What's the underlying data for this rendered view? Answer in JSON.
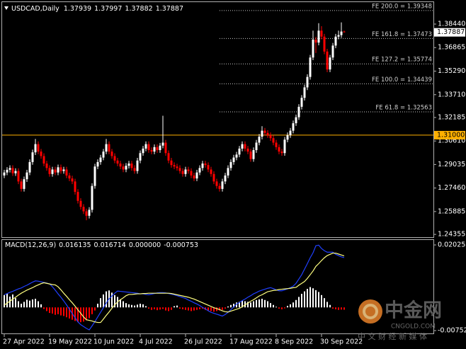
{
  "chart_data": [
    {
      "type": "candlestick",
      "title": "USDCAD,Daily",
      "categories": [
        "27 Apr 2022",
        null,
        null,
        null,
        null,
        null,
        null,
        null,
        null,
        null,
        null,
        null,
        null,
        null,
        null,
        null,
        "19 May 2022",
        null,
        null,
        null,
        null,
        null,
        null,
        null,
        null,
        null,
        null,
        null,
        null,
        null,
        null,
        null,
        "10 Jun 2022",
        null,
        null,
        null,
        null,
        null,
        null,
        null,
        null,
        null,
        null,
        null,
        null,
        null,
        null,
        null,
        "4 Jul 2022",
        null,
        null,
        null,
        null,
        null,
        null,
        null,
        null,
        null,
        null,
        null,
        null,
        null,
        null,
        null,
        "26 Jul 2022",
        null,
        null,
        null,
        null,
        null,
        null,
        null,
        null,
        null,
        null,
        null,
        null,
        null,
        null,
        null,
        "17 Aug 2022",
        null,
        null,
        null,
        null,
        null,
        null,
        null,
        null,
        null,
        null,
        null,
        null,
        null,
        null,
        null,
        "8 Sep 2022",
        null,
        null,
        null,
        null,
        null,
        null,
        null,
        null,
        null,
        null,
        null,
        null,
        null,
        null,
        null,
        "30 Sep 2022",
        null,
        null,
        null,
        null,
        null,
        null,
        null,
        null
      ],
      "open": [
        1.283,
        1.285,
        1.2868,
        1.288,
        1.2845,
        1.286,
        1.279,
        1.274,
        1.2805,
        1.285,
        1.292,
        1.2985,
        1.304,
        1.299,
        1.296,
        1.291,
        1.288,
        1.284,
        1.287,
        1.285,
        1.2885,
        1.286,
        1.287,
        1.283,
        1.281,
        1.279,
        1.272,
        1.266,
        1.262,
        1.259,
        1.256,
        1.26,
        1.276,
        1.289,
        1.292,
        1.295,
        1.299,
        1.304,
        1.299,
        1.296,
        1.293,
        1.291,
        1.289,
        1.287,
        1.2895,
        1.291,
        1.288,
        1.286,
        1.293,
        1.298,
        1.301,
        1.304,
        1.3,
        1.299,
        1.302,
        1.3,
        1.303,
        1.305,
        1.298,
        1.293,
        1.29,
        1.289,
        1.288,
        1.286,
        1.284,
        1.287,
        1.286,
        1.283,
        1.281,
        1.285,
        1.288,
        1.291,
        1.29,
        1.287,
        1.284,
        1.279,
        1.276,
        1.274,
        1.279,
        1.283,
        1.288,
        1.292,
        1.295,
        1.297,
        1.301,
        1.304,
        1.301,
        1.299,
        1.294,
        1.3,
        1.305,
        1.309,
        1.313,
        1.3115,
        1.31,
        1.308,
        1.305,
        1.302,
        1.299,
        1.298,
        1.307,
        1.31,
        1.313,
        1.318,
        1.322,
        1.329,
        1.335,
        1.342,
        1.349,
        1.362,
        1.374,
        1.372,
        1.38,
        1.376,
        1.366,
        1.354,
        1.362,
        1.37,
        1.376,
        1.377,
        1.37939
      ],
      "high": [
        1.2868,
        1.2886,
        1.2898,
        1.2898,
        1.2878,
        1.2878,
        1.2808,
        1.2823,
        1.2868,
        1.2938,
        1.3003,
        1.3075,
        1.3058,
        1.3008,
        1.2978,
        1.2928,
        1.2898,
        1.2888,
        1.2888,
        1.2903,
        1.2903,
        1.2888,
        1.2888,
        1.2848,
        1.2828,
        1.2808,
        1.2738,
        1.2678,
        1.2638,
        1.2608,
        1.2618,
        1.2778,
        1.2908,
        1.2938,
        1.2968,
        1.3008,
        1.3075,
        1.3058,
        1.3008,
        1.2978,
        1.2948,
        1.2928,
        1.2908,
        1.2913,
        1.2928,
        1.2928,
        1.2898,
        1.2948,
        1.2998,
        1.3028,
        1.3058,
        1.3058,
        1.3018,
        1.3038,
        1.3038,
        1.3048,
        1.323,
        1.3068,
        1.2998,
        1.2948,
        1.2918,
        1.2908,
        1.2898,
        1.2878,
        1.2888,
        1.2888,
        1.2878,
        1.2848,
        1.2868,
        1.2898,
        1.2928,
        1.2928,
        1.2918,
        1.2888,
        1.2858,
        1.2808,
        1.2778,
        1.2808,
        1.2848,
        1.2898,
        1.2938,
        1.2968,
        1.2988,
        1.3028,
        1.3058,
        1.3058,
        1.3028,
        1.3008,
        1.3018,
        1.3068,
        1.3108,
        1.316,
        1.3148,
        1.3133,
        1.3118,
        1.3098,
        1.3068,
        1.3038,
        1.3008,
        1.3088,
        1.3118,
        1.3148,
        1.3198,
        1.3238,
        1.3308,
        1.3368,
        1.3438,
        1.3508,
        1.3638,
        1.38,
        1.3758,
        1.385,
        1.383,
        1.3778,
        1.3678,
        1.3638,
        1.3718,
        1.3778,
        1.38,
        1.3855,
        1.37997
      ],
      "low": [
        1.2812,
        1.2832,
        1.285,
        1.2827,
        1.2827,
        1.2772,
        1.2722,
        1.2722,
        1.2787,
        1.2832,
        1.2902,
        1.2967,
        1.2972,
        1.2942,
        1.2892,
        1.2862,
        1.2822,
        1.2822,
        1.2832,
        1.2832,
        1.2842,
        1.2842,
        1.2812,
        1.2792,
        1.2772,
        1.2702,
        1.2642,
        1.2602,
        1.2572,
        1.253,
        1.2542,
        1.2582,
        1.2742,
        1.2872,
        1.2902,
        1.2932,
        1.2972,
        1.2972,
        1.2942,
        1.2912,
        1.2892,
        1.2872,
        1.2852,
        1.2852,
        1.2877,
        1.2862,
        1.2842,
        1.2842,
        1.2912,
        1.2962,
        1.2992,
        1.2982,
        1.2972,
        1.2972,
        1.2982,
        1.2982,
        1.3012,
        1.2962,
        1.2912,
        1.2882,
        1.2872,
        1.2862,
        1.2842,
        1.2822,
        1.2822,
        1.2842,
        1.2812,
        1.2792,
        1.2792,
        1.2832,
        1.2862,
        1.2882,
        1.2852,
        1.2822,
        1.2772,
        1.2742,
        1.2722,
        1.2722,
        1.2772,
        1.2812,
        1.2862,
        1.2902,
        1.2932,
        1.2952,
        1.2992,
        1.2992,
        1.2972,
        1.2922,
        1.2922,
        1.2982,
        1.3032,
        1.3072,
        1.3097,
        1.3082,
        1.3062,
        1.3032,
        1.3002,
        1.2972,
        1.2962,
        1.2962,
        1.3052,
        1.3082,
        1.3112,
        1.3162,
        1.3202,
        1.3272,
        1.3332,
        1.3402,
        1.3472,
        1.3602,
        1.365,
        1.3702,
        1.3742,
        1.3642,
        1.3522,
        1.3522,
        1.3602,
        1.3682,
        1.3742,
        1.3752,
        1.37882
      ],
      "close": [
        1.285,
        1.2868,
        1.288,
        1.2845,
        1.286,
        1.279,
        1.274,
        1.2805,
        1.285,
        1.292,
        1.2985,
        1.304,
        1.299,
        1.296,
        1.291,
        1.288,
        1.284,
        1.287,
        1.285,
        1.2885,
        1.286,
        1.287,
        1.283,
        1.281,
        1.279,
        1.272,
        1.266,
        1.262,
        1.259,
        1.256,
        1.26,
        1.276,
        1.289,
        1.292,
        1.295,
        1.299,
        1.304,
        1.299,
        1.296,
        1.293,
        1.291,
        1.289,
        1.287,
        1.2895,
        1.291,
        1.288,
        1.286,
        1.293,
        1.298,
        1.301,
        1.304,
        1.3,
        1.299,
        1.302,
        1.3,
        1.303,
        1.305,
        1.298,
        1.293,
        1.29,
        1.289,
        1.288,
        1.286,
        1.284,
        1.287,
        1.286,
        1.283,
        1.281,
        1.285,
        1.288,
        1.291,
        1.29,
        1.287,
        1.284,
        1.279,
        1.276,
        1.274,
        1.279,
        1.283,
        1.288,
        1.292,
        1.295,
        1.297,
        1.301,
        1.304,
        1.301,
        1.299,
        1.294,
        1.3,
        1.305,
        1.309,
        1.313,
        1.3115,
        1.31,
        1.308,
        1.305,
        1.302,
        1.299,
        1.298,
        1.307,
        1.31,
        1.313,
        1.318,
        1.322,
        1.329,
        1.335,
        1.342,
        1.349,
        1.362,
        1.374,
        1.372,
        1.38,
        1.376,
        1.366,
        1.354,
        1.362,
        1.37,
        1.376,
        1.377,
        1.37939,
        1.37887
      ],
      "up_color": "#ffffff",
      "down_color": "#ff0000",
      "ylim": [
        1.2417,
        1.3991
      ],
      "yticks": [
        {
          "value": 1.3844,
          "label": "1.38440"
        },
        1.36865,
        {
          "value": 1.3529,
          "label": "1.35290"
        },
        {
          "value": 1.3371,
          "label": "1.33710"
        },
        1.32185,
        {
          "value": 1.3061,
          "label": "1.30610"
        },
        1.29035,
        {
          "value": 1.2746,
          "label": "1.27460"
        },
        1.25885,
        1.24355
      ],
      "hline": {
        "value": 1.31,
        "label": "1.31000",
        "color": "#ffb000"
      },
      "levels": [
        {
          "value": 1.39348,
          "label": "FE 200.0 = 1.39348"
        },
        {
          "value": 1.37473,
          "label": "FE 161.8 = 1.37473"
        },
        {
          "value": 1.35774,
          "label": "FE 127.2 = 1.35774"
        },
        {
          "value": 1.34439,
          "label": "FE 100.0 = 1.34439"
        },
        {
          "value": 1.32563,
          "label": "FE 61.8 = 1.32563"
        }
      ],
      "grid": false
    },
    {
      "type": "macd",
      "title": "MACD(12,26,9)",
      "header_values": [
        0.016135,
        0.016714,
        "0.000000",
        -0.000753
      ],
      "histogram": {
        "up_color": "#ffffff",
        "down_color": "#ff0000",
        "values": [
          0.004,
          0.0045,
          0.0035,
          0.0042,
          0.003,
          0.002,
          0.0012,
          0.0018,
          0.0025,
          0.0022,
          0.0026,
          0.0028,
          0.002,
          0.001,
          -0.0005,
          -0.0012,
          -0.0018,
          -0.002,
          -0.0024,
          -0.0022,
          -0.0026,
          -0.0028,
          -0.0032,
          -0.0036,
          -0.004,
          -0.0044,
          -0.0047,
          -0.0048,
          -0.0046,
          -0.0042,
          -0.0035,
          -0.0022,
          -0.001,
          0.0012,
          0.003,
          0.0042,
          0.0052,
          0.0055,
          0.0048,
          0.004,
          0.0034,
          0.0026,
          0.002,
          0.0014,
          0.001,
          0.0008,
          0.0006,
          0.0009,
          0.0012,
          0.001,
          0.0004,
          -0.0004,
          -0.0008,
          -0.0006,
          -0.0009,
          -0.0007,
          -0.0005,
          -0.001,
          -0.0012,
          -0.0008,
          0.0004,
          0.0006,
          -0.0004,
          -0.0006,
          -0.0008,
          -0.001,
          -0.0012,
          -0.001,
          -0.0008,
          -0.0006,
          -0.0004,
          -0.0008,
          -0.001,
          -0.0012,
          -0.0014,
          -0.0012,
          -0.001,
          -0.0008,
          -0.0004,
          0.0003,
          0.0008,
          0.0012,
          0.0016,
          0.0018,
          0.0022,
          0.002,
          0.0018,
          0.0016,
          0.002,
          0.0024,
          0.0026,
          0.0028,
          0.0024,
          0.002,
          0.0014,
          0.0008,
          0.0002,
          -0.0004,
          -0.0006,
          -0.0003,
          0.0005,
          0.001,
          0.0016,
          0.0024,
          0.0034,
          0.0044,
          0.0052,
          0.006,
          0.0066,
          0.0062,
          0.0056,
          0.005,
          0.004,
          0.003,
          0.0018,
          0.0008,
          -0.0004,
          -0.0006,
          -0.0008,
          -0.0007,
          -0.000753
        ]
      },
      "series": [
        {
          "color": "#2040ff",
          "values": [
            0.0041,
            0.0045,
            0.0049,
            0.0052,
            0.0056,
            0.006,
            0.0063,
            0.0068,
            0.0072,
            0.0077,
            0.0082,
            0.0086,
            0.0085,
            0.0083,
            0.0081,
            0.0079,
            0.0076,
            0.0067,
            0.0056,
            0.0044,
            0.0033,
            0.0021,
            0.0008,
            -0.0006,
            -0.002,
            -0.0033,
            -0.0047,
            -0.0056,
            -0.0062,
            -0.0068,
            -0.0073,
            -0.006,
            -0.0046,
            -0.0031,
            -0.0016,
            -0.0001,
            0.0014,
            0.0028,
            0.0037,
            0.0046,
            0.0053,
            0.0052,
            0.0051,
            0.005,
            0.0049,
            0.0048,
            0.0047,
            0.0046,
            0.0044,
            0.0044,
            0.0042,
            0.0041,
            0.0043,
            0.0045,
            0.0047,
            0.0048,
            0.0048,
            0.0047,
            0.0045,
            0.0043,
            0.0041,
            0.0038,
            0.0035,
            0.0032,
            0.0029,
            0.0024,
            0.002,
            0.0015,
            0.0011,
            0.0006,
            0.0,
            -0.0005,
            -0.0011,
            -0.0016,
            -0.0019,
            -0.0022,
            -0.0025,
            -0.0028,
            -0.0023,
            -0.0016,
            -0.0007,
            0.0002,
            0.0011,
            0.0016,
            0.0022,
            0.0027,
            0.0033,
            0.0038,
            0.0044,
            0.0048,
            0.0053,
            0.0056,
            0.0059,
            0.0062,
            0.0064,
            0.0061,
            0.0057,
            0.0054,
            0.0054,
            0.0057,
            0.006,
            0.0064,
            0.0069,
            0.0078,
            0.0092,
            0.0106,
            0.0124,
            0.0142,
            0.0161,
            0.0177,
            0.02,
            0.0202,
            0.0191,
            0.0184,
            0.0179,
            0.0179,
            0.0179,
            0.0172,
            0.0168,
            0.0164,
            0.016135
          ]
        },
        {
          "color": "#ffff80",
          "values": [
            0.0007,
            0.0014,
            0.002,
            0.0027,
            0.0033,
            0.004,
            0.0046,
            0.0051,
            0.0056,
            0.006,
            0.0064,
            0.0069,
            0.0073,
            0.0077,
            0.008,
            0.0078,
            0.0076,
            0.0074,
            0.0073,
            0.0067,
            0.0057,
            0.0046,
            0.0036,
            0.0025,
            0.0015,
            0.0004,
            -0.0008,
            -0.0019,
            -0.0031,
            -0.004,
            -0.0042,
            -0.0044,
            -0.0047,
            -0.0049,
            -0.0049,
            -0.0038,
            -0.0026,
            -0.0015,
            -0.0003,
            0.0008,
            0.0018,
            0.0025,
            0.0031,
            0.0038,
            0.0042,
            0.0042,
            0.0043,
            0.0044,
            0.0044,
            0.0045,
            0.0045,
            0.0046,
            0.0046,
            0.0046,
            0.0046,
            0.0046,
            0.0046,
            0.0046,
            0.0046,
            0.0045,
            0.0043,
            0.0041,
            0.0039,
            0.0037,
            0.0035,
            0.0033,
            0.003,
            0.0027,
            0.0023,
            0.0019,
            0.0015,
            0.0011,
            0.0007,
            0.0003,
            -0.0001,
            -0.0004,
            -0.0007,
            -0.0011,
            -0.0014,
            -0.0015,
            -0.0012,
            -0.0009,
            -0.0006,
            -0.0003,
            0.0002,
            0.0008,
            0.0014,
            0.002,
            0.0025,
            0.0031,
            0.0037,
            0.0041,
            0.0046,
            0.0051,
            0.0053,
            0.0055,
            0.0056,
            0.0058,
            0.0059,
            0.006,
            0.0061,
            0.0062,
            0.0064,
            0.0065,
            0.0072,
            0.0078,
            0.0084,
            0.0094,
            0.0106,
            0.0118,
            0.0133,
            0.0142,
            0.0152,
            0.0161,
            0.0168,
            0.0172,
            0.0176,
            0.0176,
            0.0173,
            0.017,
            0.016714
          ]
        }
      ],
      "ylim": [
        -0.00844,
        0.021865
      ],
      "yticks": [
        0.020258,
        -0.007521
      ]
    }
  ],
  "watermark": {
    "name": "中金网",
    "site": "CNGOLD.COM",
    "tagline": "中 文 财 经 新 媒 体"
  }
}
